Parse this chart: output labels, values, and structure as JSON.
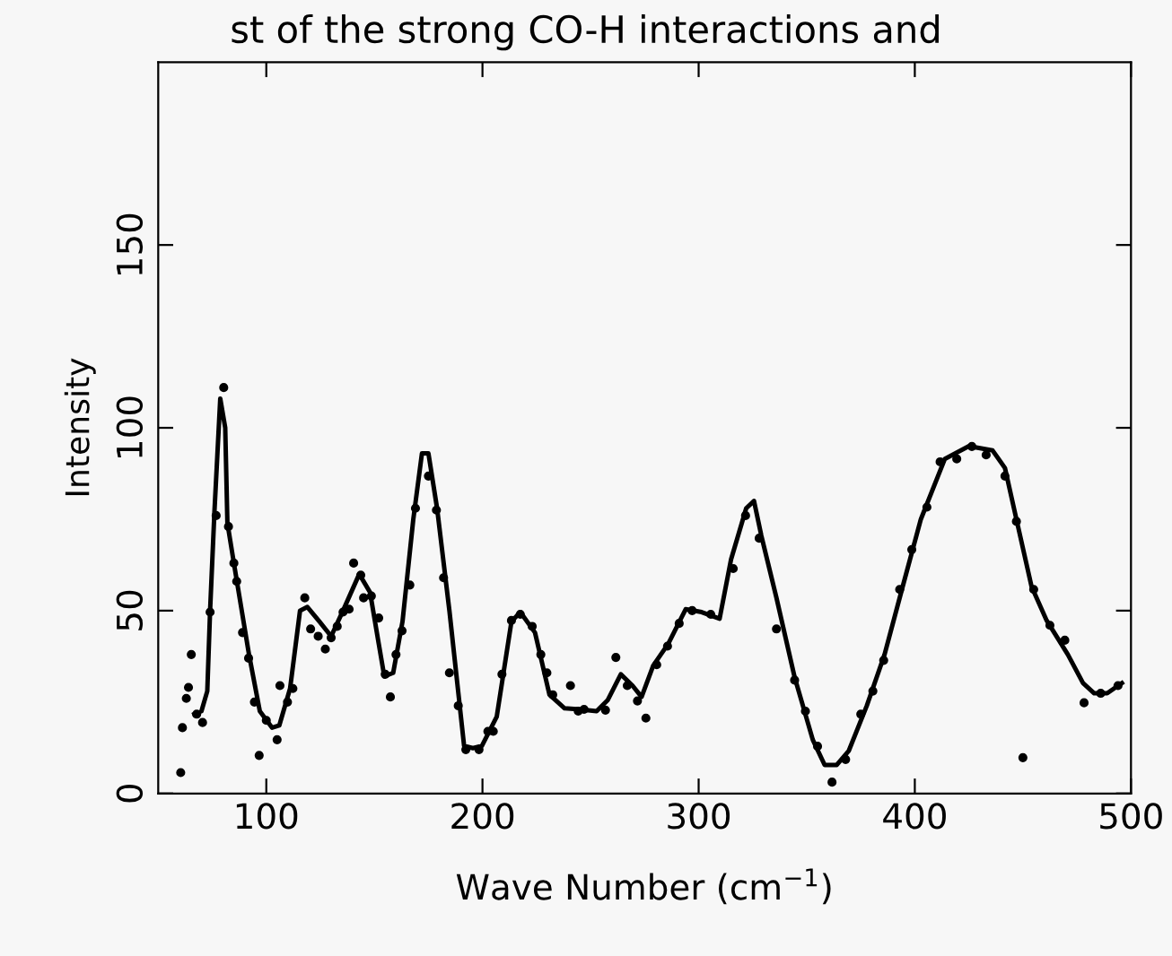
{
  "chart_data": {
    "type": "line",
    "xlabel": "Wave Number (cm$^{−1}$)",
    "ylabel": "Intensity",
    "annotations": [
      "st of the strong CO-H interactions and"
    ],
    "xlim": [
      50,
      500
    ],
    "ylim": [
      0,
      200
    ],
    "xticks": [
      100,
      200,
      300,
      400,
      500
    ],
    "yticks": [
      0,
      50,
      100,
      150
    ],
    "grid": false,
    "legend": false,
    "series": [
      {
        "color": "#000000",
        "marker": "none",
        "line_style": "solid",
        "x": [
          66.7,
          70,
          72.7,
          74,
          76,
          78.7,
          81,
          82,
          85,
          92,
          97,
          102.7,
          106,
          111,
          115.6,
          119,
          124.6,
          130,
          135.5,
          143,
          148,
          152,
          154.6,
          158.7,
          163,
          168,
          172,
          175,
          179,
          184.7,
          191.5,
          195.6,
          199.7,
          206.6,
          213.4,
          217.5,
          224.3,
          231,
          238,
          245,
          252.8,
          258,
          264,
          269.4,
          273.6,
          279,
          286,
          294,
          301.4,
          309.7,
          315,
          322,
          325.6,
          329,
          336,
          344.4,
          352.8,
          358.3,
          363.9,
          369.4,
          377.8,
          386,
          394.4,
          402.8,
          413.9,
          425,
          436,
          441.7,
          447,
          454,
          461,
          470.8,
          477.8,
          483,
          489,
          495.8
        ],
        "values": [
          21.7,
          22.5,
          28,
          50,
          77,
          108,
          100,
          74,
          63,
          38,
          22.5,
          18,
          18.6,
          28.7,
          50,
          51,
          47,
          43,
          50,
          60,
          55,
          41,
          32,
          33,
          47,
          75,
          93,
          93,
          78,
          50,
          13,
          12.4,
          13,
          21,
          47,
          49.6,
          44,
          27,
          23.3,
          23,
          22.5,
          25.6,
          32.6,
          29.5,
          26.4,
          35,
          41,
          50.4,
          49.6,
          47.8,
          64,
          78,
          80,
          70.5,
          53.5,
          31.8,
          14.7,
          7.8,
          7.8,
          11.6,
          24,
          38,
          56.6,
          75,
          91.5,
          95,
          93.8,
          89,
          75,
          56.6,
          47.3,
          38,
          30.2,
          27.4,
          27.4,
          30.2
        ]
      },
      {
        "type": "scatter",
        "color": "#000000",
        "marker": "circle",
        "x": [
          60.4,
          61.2,
          63,
          64,
          65.3,
          67.8,
          70.5,
          74,
          76.8,
          80.3,
          82.5,
          85,
          86.3,
          89,
          91.8,
          94.5,
          96.7,
          100,
          105,
          106.3,
          109.8,
          112.3,
          117.8,
          120.5,
          124,
          127.3,
          130,
          132.8,
          135.5,
          138.3,
          140.4,
          143.7,
          145,
          148.6,
          152,
          155,
          157.4,
          160,
          162.8,
          166.4,
          169,
          175,
          178.7,
          182,
          184.7,
          188.8,
          192.3,
          198.4,
          202.5,
          205,
          209,
          213.4,
          217.5,
          223,
          227,
          229.8,
          232.5,
          240.7,
          244.3,
          247,
          256.9,
          261.7,
          267,
          271.7,
          275.6,
          280.6,
          285.6,
          291,
          297,
          305.6,
          316,
          321.7,
          328,
          336,
          344.4,
          349.4,
          355,
          361.7,
          368,
          375,
          380.6,
          385.6,
          393,
          398.6,
          405.6,
          411.7,
          419.4,
          426.4,
          433,
          441.7,
          447,
          450,
          455,
          462.5,
          469.4,
          478.3,
          486,
          494
        ],
        "values": [
          5.7,
          18,
          26,
          29,
          38,
          21.7,
          19.4,
          49.6,
          76,
          111,
          73,
          63,
          58,
          44,
          37,
          25,
          10.4,
          20,
          14.7,
          29.5,
          25,
          28.7,
          53.5,
          45,
          43,
          39.5,
          42.6,
          45.7,
          49.6,
          50.4,
          63,
          59.7,
          53.5,
          54,
          48,
          32.6,
          26.4,
          38,
          44.5,
          57,
          78,
          86.8,
          77.5,
          59,
          33,
          24,
          12,
          12,
          17,
          17,
          32.6,
          47.3,
          49,
          45.7,
          38,
          33,
          27,
          29.5,
          22.5,
          23,
          22.8,
          37.2,
          29.5,
          25.3,
          20.6,
          35.2,
          40.3,
          46.5,
          50,
          49,
          61.5,
          76,
          69.8,
          45,
          31,
          22.5,
          12.9,
          3.1,
          9.3,
          21.7,
          28,
          36.4,
          55.8,
          66.7,
          78.3,
          90.7,
          91.5,
          94.9,
          92.6,
          86.8,
          74.4,
          9.8,
          55.8,
          46,
          41.9,
          24.8,
          27.4,
          29.5
        ]
      }
    ]
  }
}
